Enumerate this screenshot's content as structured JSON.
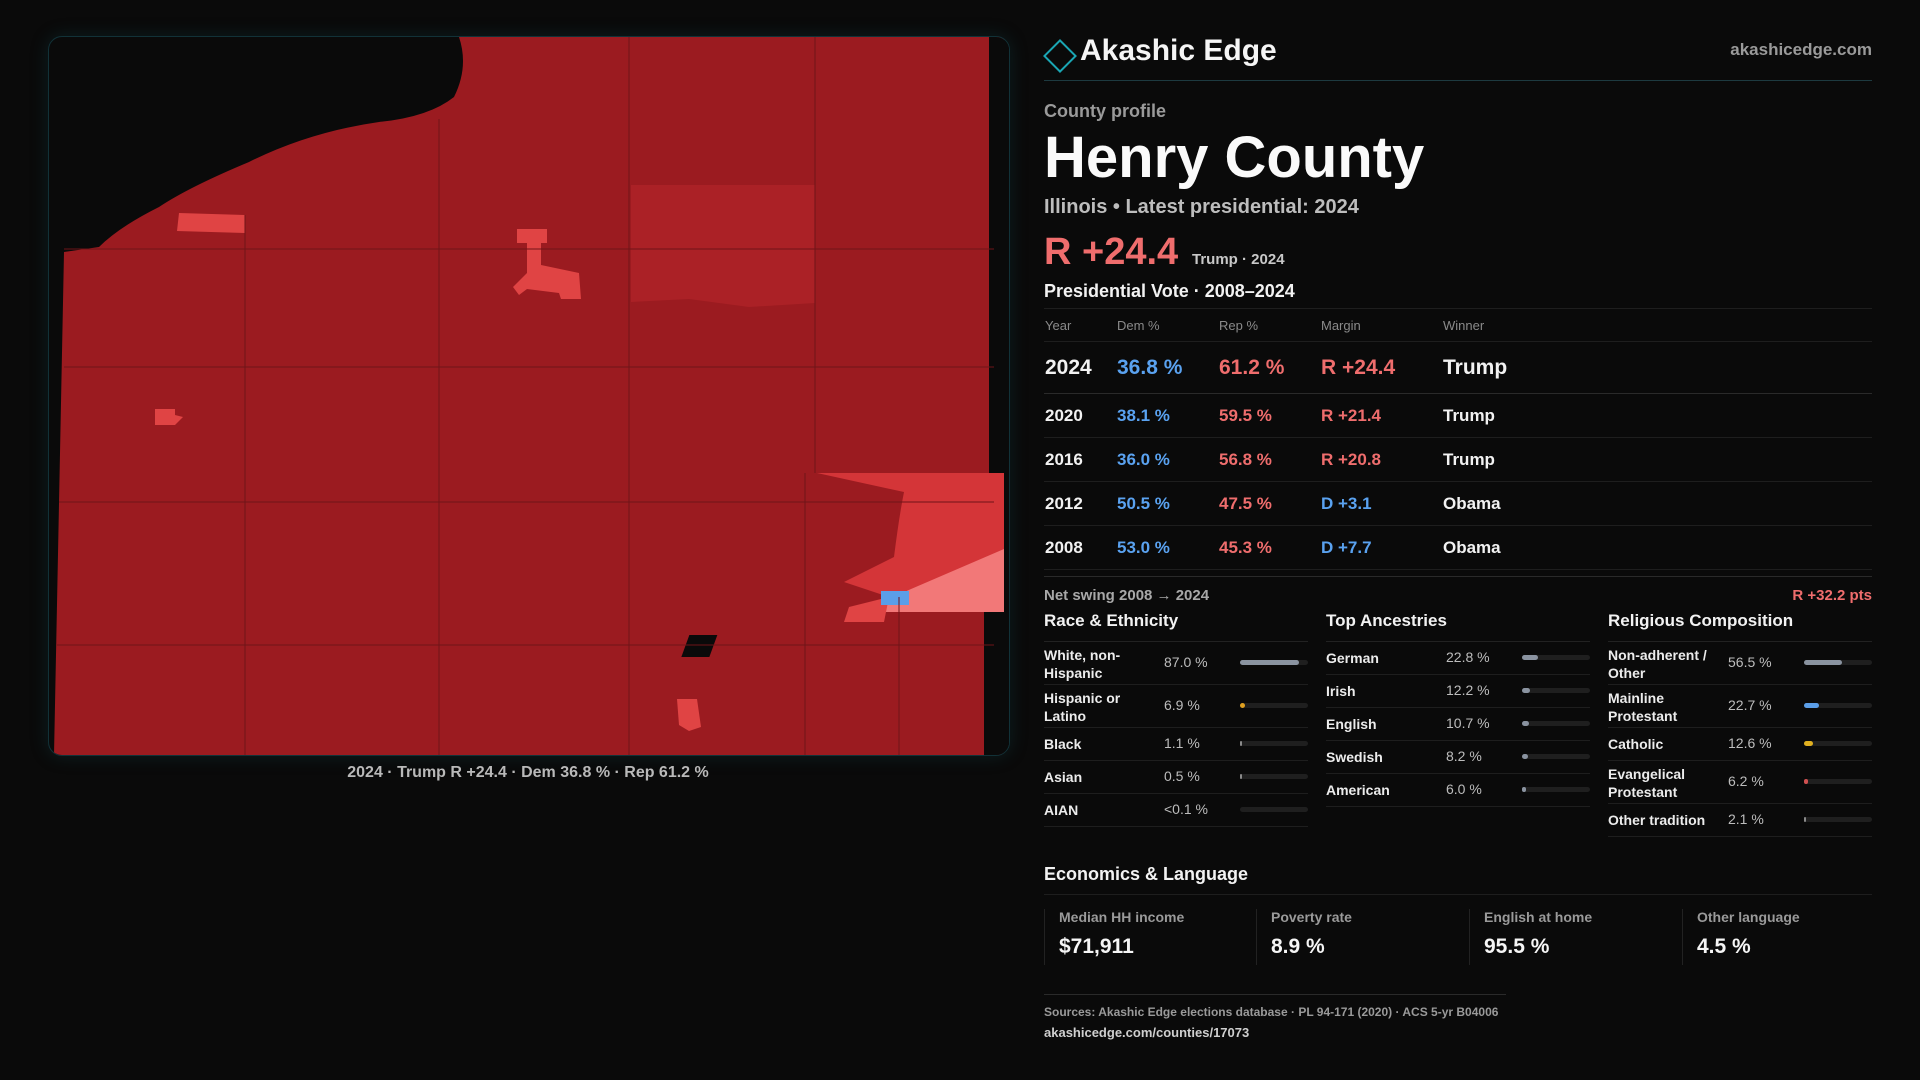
{
  "map": {
    "caption": "2024 · Trump R +24.4 · Dem 36.8 % · Rep 61.2 %",
    "colors": {
      "background": "#0a0a0a",
      "strong_rep": "#9b1b20",
      "medium_rep": "#b0252a",
      "light_rep": "#d73a3a",
      "lean_rep": "#f57b7b",
      "dem": "#5b9ee8"
    }
  },
  "brand": {
    "name": "Akashic Edge",
    "url": "akashicedge.com",
    "icon": "diamond-outline-icon"
  },
  "profile": {
    "kicker": "County profile",
    "title": "Henry County",
    "subtitle": "Illinois • Latest presidential: 2024",
    "margin": "R +24.4",
    "margin_sub": "Trump · 2024"
  },
  "votes": {
    "heading": "Presidential Vote · 2008–2024",
    "columns": [
      "Year",
      "Dem %",
      "Rep %",
      "Margin",
      "Winner"
    ],
    "rows": [
      {
        "year": "2024",
        "dem": "36.8 %",
        "rep": "61.2 %",
        "margin": "R +24.4",
        "winner": "Trump"
      },
      {
        "year": "2020",
        "dem": "38.1 %",
        "rep": "59.5 %",
        "margin": "R +21.4",
        "winner": "Trump"
      },
      {
        "year": "2016",
        "dem": "36.0 %",
        "rep": "56.8 %",
        "margin": "R +20.8",
        "winner": "Trump"
      },
      {
        "year": "2012",
        "dem": "50.5 %",
        "rep": "47.5 %",
        "margin": "D +3.1",
        "winner": "Obama"
      },
      {
        "year": "2008",
        "dem": "53.0 %",
        "rep": "45.3 %",
        "margin": "D +7.7",
        "winner": "Obama"
      }
    ],
    "swing_label": "Net swing 2008 → 2024",
    "swing_value": "R +32.2 pts"
  },
  "race": {
    "heading": "Race & Ethnicity",
    "items": [
      {
        "label": "White, non-Hispanic",
        "value": "87.0 %",
        "share": 0.87,
        "color": "#8a93a0"
      },
      {
        "label": "Hispanic or Latino",
        "value": "6.9 %",
        "share": 0.069,
        "color": "#e0a020"
      },
      {
        "label": "Black",
        "value": "1.1 %",
        "share": 0.011,
        "color": "#8a8a8a"
      },
      {
        "label": "Asian",
        "value": "0.5 %",
        "share": 0.005,
        "color": "#8a8a8a"
      },
      {
        "label": "AIAN",
        "value": "<0.1 %",
        "share": 0.0,
        "color": "#8a8a8a"
      }
    ]
  },
  "ancestry": {
    "heading": "Top Ancestries",
    "items": [
      {
        "label": "German",
        "value": "22.8 %",
        "share": 0.228,
        "color": "#8a93a0"
      },
      {
        "label": "Irish",
        "value": "12.2 %",
        "share": 0.122,
        "color": "#8a93a0"
      },
      {
        "label": "English",
        "value": "10.7 %",
        "share": 0.107,
        "color": "#8a93a0"
      },
      {
        "label": "Swedish",
        "value": "8.2 %",
        "share": 0.082,
        "color": "#8a93a0"
      },
      {
        "label": "American",
        "value": "6.0 %",
        "share": 0.06,
        "color": "#8a93a0"
      }
    ]
  },
  "religion": {
    "heading": "Religious Composition",
    "items": [
      {
        "label": "Non-adherent / Other",
        "value": "56.5 %",
        "share": 0.565,
        "color": "#8a93a0"
      },
      {
        "label": "Mainline Protestant",
        "value": "22.7 %",
        "share": 0.227,
        "color": "#5b9ee8"
      },
      {
        "label": "Catholic",
        "value": "12.6 %",
        "share": 0.126,
        "color": "#e0b020"
      },
      {
        "label": "Evangelical Protestant",
        "value": "6.2 %",
        "share": 0.062,
        "color": "#d05050"
      },
      {
        "label": "Other tradition",
        "value": "2.1 %",
        "share": 0.021,
        "color": "#8a8a8a"
      }
    ]
  },
  "econ": {
    "heading": "Economics & Language",
    "cards": [
      {
        "label": "Median HH income",
        "value": "$71,911"
      },
      {
        "label": "Poverty rate",
        "value": "8.9 %"
      },
      {
        "label": "English at home",
        "value": "95.5 %"
      },
      {
        "label": "Other language",
        "value": "4.5 %"
      }
    ]
  },
  "sources": {
    "line": "Sources: Akashic Edge elections database · PL 94-171 (2020) · ACS 5-yr B04006",
    "url": "akashicedge.com/counties/17073"
  }
}
